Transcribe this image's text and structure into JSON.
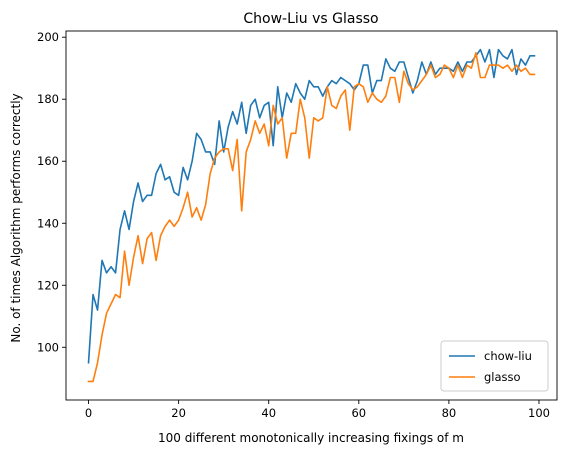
{
  "chart_data": {
    "type": "line",
    "title": "Chow-Liu vs Glasso",
    "xlabel": "100 different monotonically increasing fixings of m",
    "ylabel": "No. of times Algorithm performs correctly",
    "xlim": [
      -5,
      104
    ],
    "ylim": [
      83,
      202
    ],
    "xticks": [
      0,
      20,
      40,
      60,
      80,
      100
    ],
    "yticks": [
      100,
      120,
      140,
      160,
      180,
      200
    ],
    "grid": false,
    "legend_position": "lower right",
    "x": [
      0,
      1,
      2,
      3,
      4,
      5,
      6,
      7,
      8,
      9,
      10,
      11,
      12,
      13,
      14,
      15,
      16,
      17,
      18,
      19,
      20,
      21,
      22,
      23,
      24,
      25,
      26,
      27,
      28,
      29,
      30,
      31,
      32,
      33,
      34,
      35,
      36,
      37,
      38,
      39,
      40,
      41,
      42,
      43,
      44,
      45,
      46,
      47,
      48,
      49,
      50,
      51,
      52,
      53,
      54,
      55,
      56,
      57,
      58,
      59,
      60,
      61,
      62,
      63,
      64,
      65,
      66,
      67,
      68,
      69,
      70,
      71,
      72,
      73,
      74,
      75,
      76,
      77,
      78,
      79,
      80,
      81,
      82,
      83,
      84,
      85,
      86,
      87,
      88,
      89,
      90,
      91,
      92,
      93,
      94,
      95,
      96,
      97,
      98,
      99
    ],
    "series": [
      {
        "name": "chow-liu",
        "color": "#1f77b4",
        "values": [
          95,
          117,
          112,
          128,
          124,
          126,
          124,
          138,
          144,
          138,
          147,
          153,
          147,
          149,
          149,
          156,
          159,
          154,
          155,
          150,
          149,
          158,
          154,
          160,
          169,
          167,
          163,
          163,
          159,
          173,
          163,
          171,
          176,
          172,
          179,
          169,
          178,
          180,
          174,
          178,
          179,
          165,
          184,
          174,
          182,
          179,
          185,
          182,
          180,
          186,
          184,
          184,
          181,
          184,
          186,
          185,
          187,
          186,
          185,
          183,
          185,
          191,
          191,
          182,
          186,
          186,
          193,
          190,
          189,
          192,
          192,
          187,
          182,
          186,
          192,
          188,
          192,
          188,
          190,
          190,
          190,
          189,
          192,
          189,
          192,
          192,
          194,
          196,
          192,
          196,
          187,
          196,
          194,
          193,
          196,
          188,
          193,
          191,
          194,
          194
        ]
      },
      {
        "name": "glasso",
        "color": "#ff7f0e",
        "values": [
          89,
          89,
          95,
          104,
          111,
          114,
          117,
          116,
          131,
          120,
          129,
          136,
          127,
          135,
          137,
          128,
          136,
          139,
          141,
          139,
          141,
          145,
          150,
          142,
          145,
          141,
          146,
          156,
          161,
          163,
          164,
          164,
          157,
          167,
          144,
          163,
          167,
          173,
          169,
          172,
          165,
          178,
          172,
          174,
          161,
          169,
          169,
          180,
          174,
          161,
          174,
          173,
          174,
          184,
          178,
          177,
          181,
          183,
          170,
          184,
          185,
          184,
          179,
          182,
          180,
          179,
          181,
          187,
          187,
          179,
          189,
          185,
          183,
          184,
          186,
          188,
          191,
          187,
          188,
          191,
          190,
          187,
          191,
          187,
          191,
          190,
          195,
          187,
          187,
          191,
          191,
          191,
          190,
          191,
          189,
          191,
          189,
          190,
          188,
          188
        ]
      }
    ]
  }
}
